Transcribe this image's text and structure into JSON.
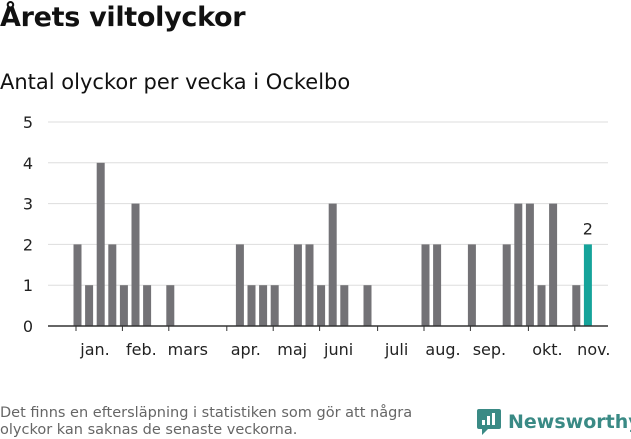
{
  "header": {
    "title": "Årets viltolyckor",
    "subtitle": "Antal olyckor per vecka i Ockelbo"
  },
  "footer": {
    "note": "Det finns en eftersläpning i statistiken som gör att några olyckor kan saknas de senaste veckorna.",
    "brand": "Newsworthy"
  },
  "colors": {
    "bar": "#737276",
    "highlight": "#15a39a",
    "grid": "#dddddd",
    "brand": "#3a8a85"
  },
  "chart_data": {
    "type": "bar",
    "x": [
      1,
      2,
      3,
      4,
      5,
      6,
      7,
      8,
      9,
      10,
      11,
      12,
      13,
      14,
      15,
      16,
      17,
      18,
      19,
      20,
      21,
      22,
      23,
      24,
      25,
      26,
      27,
      28,
      29,
      30,
      31,
      32,
      33,
      34,
      35,
      36,
      37,
      38,
      39,
      40,
      41,
      42,
      43,
      44,
      45,
      46
    ],
    "values": [
      2,
      1,
      4,
      2,
      1,
      3,
      1,
      0,
      1,
      0,
      0,
      0,
      0,
      0,
      2,
      1,
      1,
      1,
      0,
      2,
      2,
      1,
      3,
      1,
      0,
      1,
      0,
      0,
      0,
      0,
      2,
      2,
      0,
      0,
      2,
      0,
      0,
      2,
      3,
      3,
      1,
      3,
      0,
      1,
      2,
      null
    ],
    "highlight_index": 44,
    "highlight_label": "2",
    "month_labels": [
      "jan.",
      "feb.",
      "mars",
      "apr.",
      "maj",
      "juni",
      "juli",
      "aug.",
      "sep.",
      "okt.",
      "nov."
    ],
    "month_start_weeks": [
      1,
      5,
      9,
      14,
      18,
      22,
      27,
      31,
      35,
      40,
      44
    ],
    "yticks": [
      "0",
      "1",
      "2",
      "3",
      "4",
      "5"
    ],
    "ylim": [
      0,
      5
    ],
    "grid": true,
    "legend": "none"
  }
}
